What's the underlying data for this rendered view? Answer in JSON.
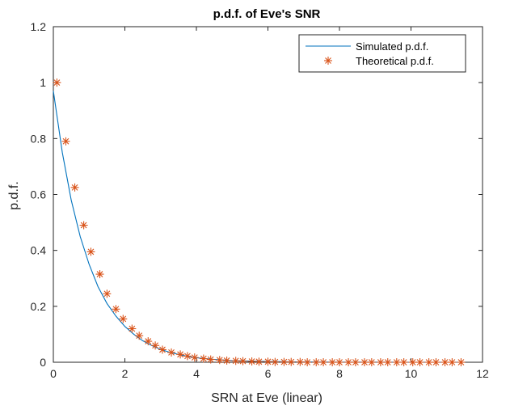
{
  "chart_data": {
    "type": "line",
    "title": "p.d.f. of Eve's SNR",
    "xlabel": "SRN at Eve (linear)",
    "ylabel": "p.d.f.",
    "xlim": [
      0,
      12
    ],
    "ylim": [
      0,
      1.2
    ],
    "xticks": [
      "0",
      "2",
      "4",
      "6",
      "8",
      "10",
      "12"
    ],
    "yticks": [
      "0",
      "0.2",
      "0.4",
      "0.6",
      "0.8",
      "1",
      "1.2"
    ],
    "legend_position": "top-right",
    "grid": false,
    "series": [
      {
        "name": "Simulated p.d.f.",
        "style": "line",
        "color": "#0072BD",
        "x": [
          0,
          0.25,
          0.5,
          0.75,
          1.0,
          1.25,
          1.5,
          1.75,
          2.0,
          2.25,
          2.5,
          2.75,
          3.0,
          3.25,
          3.5,
          3.75,
          4.0,
          4.5,
          5.0,
          5.5,
          6.0,
          7.0,
          8.0,
          9.0,
          10.0,
          11.4
        ],
        "y": [
          0.97,
          0.75,
          0.58,
          0.45,
          0.35,
          0.27,
          0.21,
          0.165,
          0.128,
          0.1,
          0.077,
          0.06,
          0.046,
          0.036,
          0.028,
          0.021,
          0.016,
          0.01,
          0.006,
          0.004,
          0.0025,
          0.001,
          0.0004,
          0.0002,
          0.0001,
          0.0
        ]
      },
      {
        "name": "Theoretical p.d.f.",
        "style": "marker",
        "marker": "asterisk",
        "color": "#D95319",
        "x": [
          0.1,
          0.35,
          0.6,
          0.85,
          1.05,
          1.3,
          1.5,
          1.75,
          1.95,
          2.2,
          2.4,
          2.65,
          2.85,
          3.05,
          3.3,
          3.55,
          3.75,
          3.95,
          4.2,
          4.4,
          4.65,
          4.85,
          5.1,
          5.3,
          5.55,
          5.75,
          6.0,
          6.2,
          6.45,
          6.65,
          6.9,
          7.1,
          7.35,
          7.55,
          7.8,
          8.0,
          8.25,
          8.45,
          8.7,
          8.9,
          9.15,
          9.35,
          9.6,
          9.8,
          10.05,
          10.25,
          10.5,
          10.7,
          10.95,
          11.15,
          11.4
        ],
        "y": [
          1.0,
          0.79,
          0.625,
          0.49,
          0.395,
          0.315,
          0.245,
          0.19,
          0.155,
          0.12,
          0.095,
          0.075,
          0.06,
          0.045,
          0.035,
          0.028,
          0.022,
          0.017,
          0.013,
          0.01,
          0.008,
          0.006,
          0.005,
          0.004,
          0.003,
          0.002,
          0.002,
          0.001,
          0.001,
          0.001,
          0.001,
          0.0,
          0.0,
          0.0,
          0.0,
          0.0,
          0.0,
          0.0,
          0.0,
          0.0,
          0.0,
          0.0,
          0.0,
          0.0,
          0.0,
          0.0,
          0.0,
          0.0,
          0.0,
          0.0,
          0.0
        ]
      }
    ]
  }
}
